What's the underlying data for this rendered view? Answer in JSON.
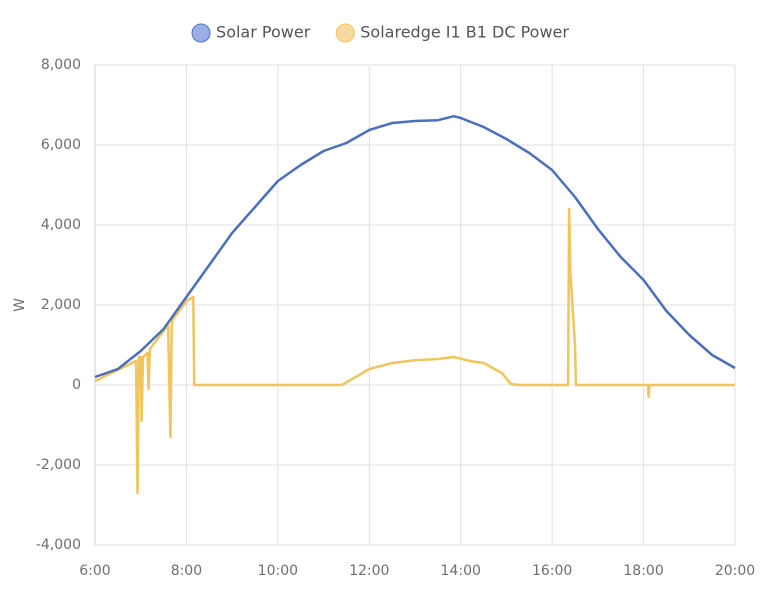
{
  "chart_data": {
    "type": "line",
    "y_label": "W",
    "xlim": [
      6,
      20
    ],
    "xticks": [
      {
        "value": 6,
        "label": "6:00"
      },
      {
        "value": 8,
        "label": "8:00"
      },
      {
        "value": 10,
        "label": "10:00"
      },
      {
        "value": 12,
        "label": "12:00"
      },
      {
        "value": 14,
        "label": "14:00"
      },
      {
        "value": 16,
        "label": "16:00"
      },
      {
        "value": 18,
        "label": "18:00"
      },
      {
        "value": 20,
        "label": "20:00"
      }
    ],
    "ylim": [
      -4000,
      8000
    ],
    "yticks": [
      {
        "value": -4000,
        "label": "-4,000"
      },
      {
        "value": -2000,
        "label": "-2,000"
      },
      0,
      {
        "value": 2000,
        "label": "2,000"
      },
      {
        "value": 4000,
        "label": "4,000"
      },
      {
        "value": 6000,
        "label": "6,000"
      },
      {
        "value": 8000,
        "label": "8,000"
      }
    ],
    "grid": true,
    "series": [
      {
        "name": "Solar Power",
        "color": "#4a6fbf",
        "legend_color": "#9aaee6",
        "x": [
          6.0,
          6.5,
          7.0,
          7.5,
          8.0,
          8.5,
          9.0,
          9.5,
          10.0,
          10.5,
          11.0,
          11.5,
          12.0,
          12.5,
          13.0,
          13.5,
          13.85,
          14.0,
          14.5,
          15.0,
          15.5,
          16.0,
          16.5,
          17.0,
          17.5,
          18.0,
          18.5,
          19.0,
          19.5,
          20.0
        ],
        "values": [
          200,
          400,
          850,
          1400,
          2200,
          3000,
          3800,
          4450,
          5100,
          5500,
          5850,
          6050,
          6375,
          6550,
          6600,
          6620,
          6720,
          6675,
          6450,
          6150,
          5800,
          5375,
          4700,
          3900,
          3200,
          2625,
          1850,
          1250,
          750,
          425
        ]
      },
      {
        "name": "Solaredge I1 B1 DC Power",
        "color": "#f0c55a",
        "legend_color": "#fad9a0",
        "x": [
          6.0,
          6.9,
          6.93,
          6.96,
          7.0,
          7.02,
          7.05,
          7.15,
          7.17,
          7.2,
          7.6,
          7.65,
          7.68,
          8.0,
          8.15,
          8.17,
          11.4,
          11.7,
          12.0,
          12.5,
          13.0,
          13.5,
          13.85,
          14.2,
          14.5,
          14.9,
          15.1,
          15.3,
          16.35,
          16.37,
          16.4,
          16.5,
          16.52,
          18.1,
          18.11,
          18.13,
          20.0
        ],
        "values": [
          100,
          600,
          -2700,
          700,
          700,
          -900,
          700,
          800,
          -100,
          900,
          1500,
          -1300,
          1600,
          2100,
          2200,
          0,
          0,
          200,
          400,
          550,
          620,
          650,
          700,
          600,
          550,
          300,
          20,
          0,
          0,
          4400,
          2800,
          1000,
          0,
          0,
          -300,
          0,
          0
        ]
      }
    ]
  }
}
